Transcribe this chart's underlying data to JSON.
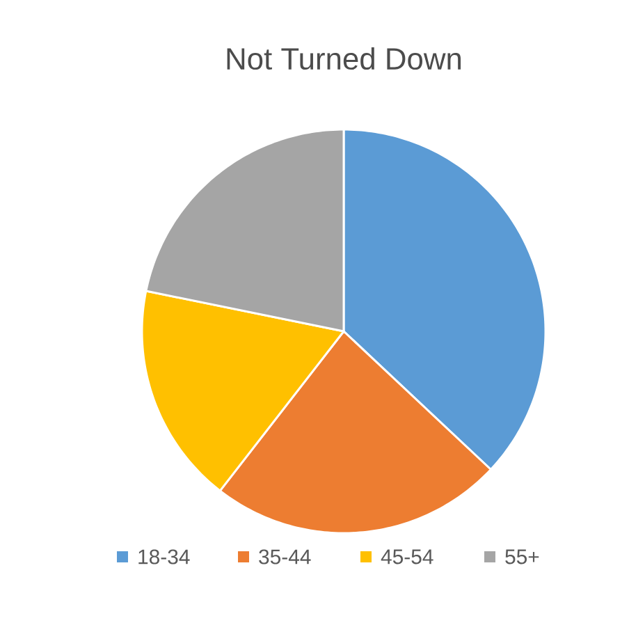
{
  "chart_data": {
    "type": "pie",
    "title": "Not Turned Down",
    "categories": [
      "18-34",
      "35-44",
      "45-54",
      "55+"
    ],
    "values": [
      37,
      23.5,
      17.7,
      21.8
    ],
    "colors": [
      "#5b9bd5",
      "#ed7d31",
      "#ffc000",
      "#a5a5a5"
    ],
    "legend": "bottom"
  }
}
